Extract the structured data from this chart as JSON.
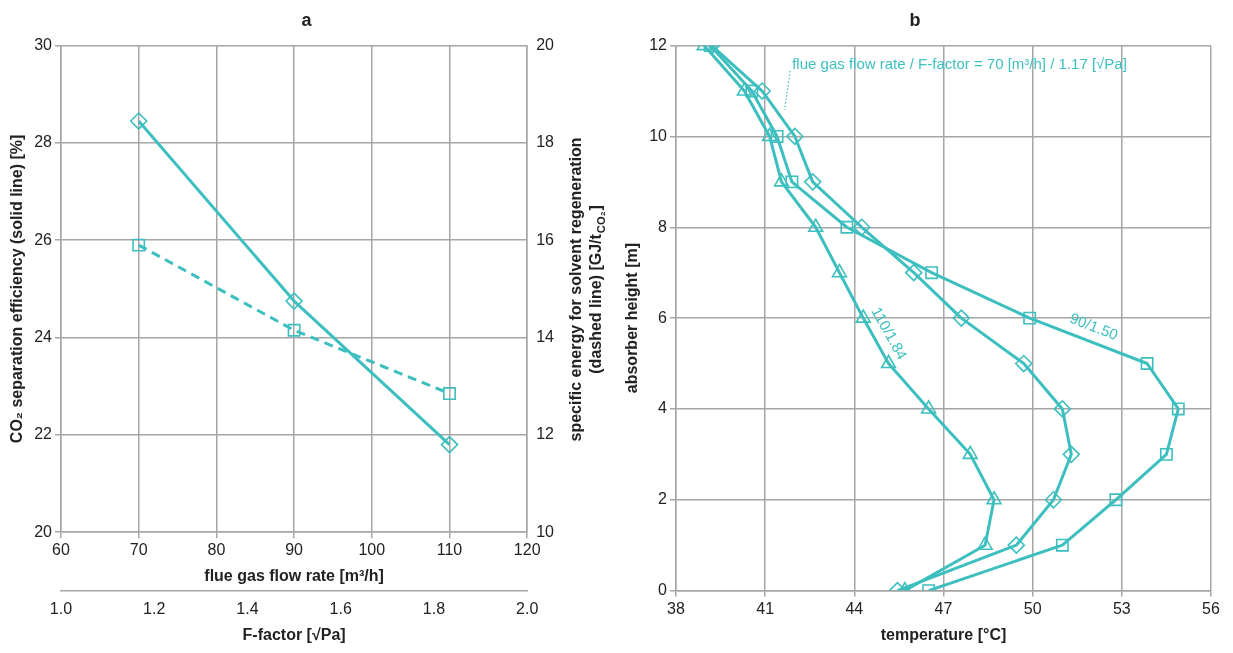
{
  "chart_data": [
    {
      "type": "line",
      "title": "a",
      "xlabel": "flue gas flow rate [m³/h]",
      "ylabel": "CO₂ separation efficiency (solid line) [%]",
      "y2label": "specific energy for solvent regeneration (dashed line) [GJ/t$_{CO₂}$]",
      "x2label": "F-factor [√Pa]",
      "x": [
        70,
        90,
        110
      ],
      "series": [
        {
          "color": "#3dbfbf",
          "values": [
            28.45,
            24.75,
            21.8
          ],
          "marker": "diamond",
          "line_style": "solid"
        },
        {
          "color": "#3dbfbf",
          "values": [
            15.9,
            14.15,
            12.85
          ],
          "axis": "y2",
          "marker": "square",
          "line_style": "dashed"
        }
      ],
      "xlim": [
        60,
        120
      ],
      "xticks": [
        60,
        70,
        80,
        90,
        100,
        110,
        120
      ],
      "ylim": [
        20,
        30
      ],
      "yticks": [
        20,
        22,
        24,
        26,
        28,
        30
      ],
      "y2lim": [
        10,
        20
      ],
      "y2ticks": [
        10,
        12,
        14,
        16,
        18,
        20
      ],
      "x2lim": [
        1.0,
        2.0
      ],
      "x2ticks": [
        {
          "value": 1.0,
          "label": "1.0"
        },
        1.2,
        1.4,
        1.6,
        1.8,
        {
          "value": 2.0,
          "label": "2.0"
        }
      ],
      "grid": true
    },
    {
      "type": "line",
      "title": "b",
      "xlabel": "temperature [°C]",
      "ylabel": "absorber height [m]",
      "series": [
        {
          "name": "flue gas flow rate / F-factor = 70 [m³/h] / 1.17 [√Pa]",
          "color": "#3dbfbf",
          "marker": "diamond",
          "line_style": "solid",
          "x": [
            39.2,
            40.9,
            42.0,
            42.6,
            44.25,
            46.0,
            47.6,
            49.7,
            51.0,
            51.3,
            50.7,
            49.45,
            45.45
          ],
          "values": [
            12,
            11,
            10,
            9,
            8,
            7,
            6,
            5,
            4,
            3,
            2,
            1,
            0
          ]
        },
        {
          "name": "90/1.50",
          "color": "#3dbfbf",
          "marker": "square",
          "line_style": "solid",
          "x": [
            39.15,
            40.55,
            41.4,
            41.9,
            43.75,
            46.6,
            49.9,
            53.85,
            54.9,
            54.5,
            52.8,
            51.0,
            46.5
          ],
          "values": [
            12,
            11,
            10,
            9,
            8,
            7,
            6,
            5,
            4,
            3,
            2,
            1,
            0
          ]
        },
        {
          "name": "110/1.84",
          "color": "#3dbfbf",
          "marker": "triangle",
          "line_style": "solid",
          "x": [
            38.95,
            40.3,
            41.15,
            41.55,
            42.7,
            43.5,
            44.3,
            45.15,
            46.5,
            47.9,
            48.7,
            48.4,
            45.7
          ],
          "values": [
            12,
            11,
            10,
            9,
            8,
            7,
            6,
            5,
            4,
            3,
            2,
            1,
            0
          ]
        }
      ],
      "xlim": [
        38,
        56
      ],
      "xticks": [
        38,
        41,
        44,
        47,
        50,
        53,
        56
      ],
      "ylim": [
        0,
        12
      ],
      "yticks": [
        0,
        2,
        4,
        6,
        8,
        10,
        12
      ],
      "grid": true
    }
  ]
}
